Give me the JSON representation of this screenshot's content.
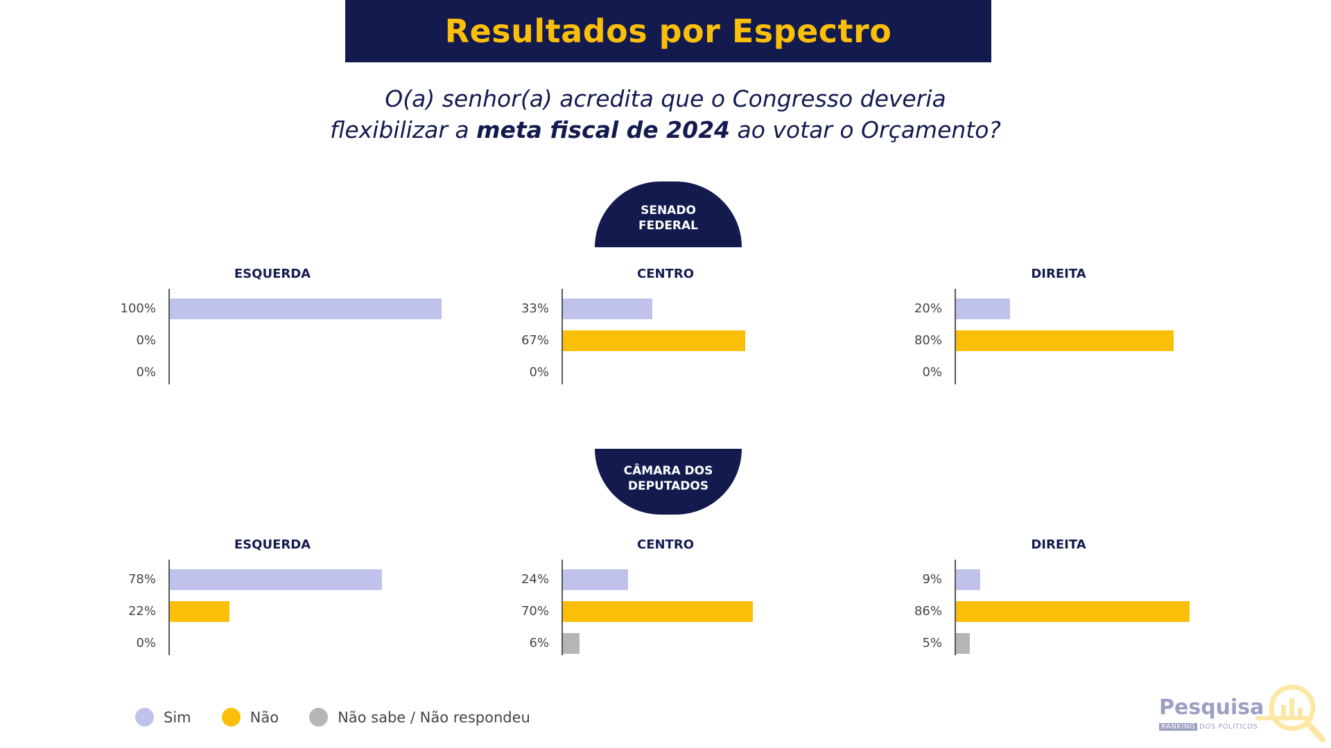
{
  "header": {
    "title": "Resultados por Espectro"
  },
  "question": {
    "part1": "O(a) senhor(a) acredita que o Congresso deveria",
    "part2": "flexibilizar a ",
    "bold": "meta fiscal de 2024",
    "part3": " ao votar o Orçamento?"
  },
  "sections": {
    "senado": "SENADO\nFEDERAL",
    "camara": "CÂMARA DOS\nDEPUTADOS"
  },
  "colors": {
    "sim": "#bfc3ec",
    "nao": "#fbbf0a",
    "ns": "#b5b5b5"
  },
  "legend": {
    "sim": "Sim",
    "nao": "Não",
    "ns": "Não sabe / Não respondeu"
  },
  "logo": {
    "name": "Pesquisa",
    "sub_a": "RANKING",
    "sub_b": "DOS POLÍTICOS"
  },
  "chart_data": [
    {
      "type": "bar",
      "orientation": "horizontal",
      "section": "SENADO FEDERAL",
      "title": "ESQUERDA",
      "categories": [
        "Sim",
        "Não",
        "Não sabe / Não respondeu"
      ],
      "values": [
        100,
        0,
        0
      ],
      "labels": [
        "100%",
        "0%",
        "0%"
      ],
      "xlim": [
        0,
        100
      ]
    },
    {
      "type": "bar",
      "orientation": "horizontal",
      "section": "SENADO FEDERAL",
      "title": "CENTRO",
      "categories": [
        "Sim",
        "Não",
        "Não sabe / Não respondeu"
      ],
      "values": [
        33,
        67,
        0
      ],
      "labels": [
        "33%",
        "67%",
        "0%"
      ],
      "xlim": [
        0,
        100
      ]
    },
    {
      "type": "bar",
      "orientation": "horizontal",
      "section": "SENADO FEDERAL",
      "title": "DIREITA",
      "categories": [
        "Sim",
        "Não",
        "Não sabe / Não respondeu"
      ],
      "values": [
        20,
        80,
        0
      ],
      "labels": [
        "20%",
        "80%",
        "0%"
      ],
      "xlim": [
        0,
        100
      ]
    },
    {
      "type": "bar",
      "orientation": "horizontal",
      "section": "CÂMARA DOS DEPUTADOS",
      "title": "ESQUERDA",
      "categories": [
        "Sim",
        "Não",
        "Não sabe / Não respondeu"
      ],
      "values": [
        78,
        22,
        0
      ],
      "labels": [
        "78%",
        "22%",
        "0%"
      ],
      "xlim": [
        0,
        100
      ]
    },
    {
      "type": "bar",
      "orientation": "horizontal",
      "section": "CÂMARA DOS DEPUTADOS",
      "title": "CENTRO",
      "categories": [
        "Sim",
        "Não",
        "Não sabe / Não respondeu"
      ],
      "values": [
        24,
        70,
        6
      ],
      "labels": [
        "24%",
        "70%",
        "6%"
      ],
      "xlim": [
        0,
        100
      ]
    },
    {
      "type": "bar",
      "orientation": "horizontal",
      "section": "CÂMARA DOS DEPUTADOS",
      "title": "DIREITA",
      "categories": [
        "Sim",
        "Não",
        "Não sabe / Não respondeu"
      ],
      "values": [
        9,
        86,
        5
      ],
      "labels": [
        "9%",
        "86%",
        "5%"
      ],
      "xlim": [
        0,
        100
      ]
    }
  ]
}
